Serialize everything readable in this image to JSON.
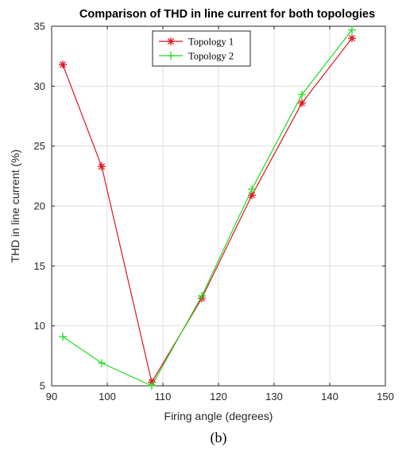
{
  "chart_data": {
    "type": "line",
    "title": "Comparison of THD in line current for both topologies",
    "xlabel": "Firing angle (degrees)",
    "ylabel": "THD in line current (%)",
    "xlim": [
      90,
      150
    ],
    "ylim": [
      5,
      35
    ],
    "xticks": [
      90,
      100,
      110,
      120,
      130,
      140,
      150
    ],
    "yticks": [
      5,
      10,
      15,
      20,
      25,
      30,
      35
    ],
    "grid": true,
    "legend_position": "top-center",
    "series": [
      {
        "name": "Topology 1",
        "color": "#e0141e",
        "marker": "asterisk",
        "x": [
          92,
          99,
          108,
          117,
          126,
          135,
          144
        ],
        "y": [
          31.8,
          23.3,
          5.3,
          12.3,
          20.9,
          28.6,
          34.0
        ]
      },
      {
        "name": "Topology 2",
        "color": "#1edc1e",
        "marker": "plus",
        "x": [
          92,
          99,
          108,
          117,
          126,
          135,
          144
        ],
        "y": [
          9.1,
          6.9,
          5.0,
          12.5,
          21.4,
          29.3,
          34.7
        ]
      }
    ]
  },
  "caption": "(b)"
}
